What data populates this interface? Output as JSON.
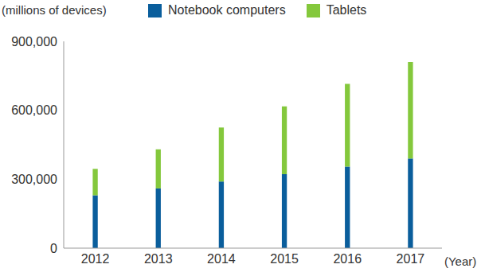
{
  "chart_data": {
    "type": "bar",
    "stacked": true,
    "y_label": "(millions of devices)",
    "x_label": "(Year)",
    "categories": [
      "2012",
      "2013",
      "2014",
      "2015",
      "2016",
      "2017"
    ],
    "series": [
      {
        "name": "Notebook computers",
        "color": "#0a5e9c",
        "values": [
          230000,
          260000,
          290000,
          322000,
          355000,
          390000
        ]
      },
      {
        "name": "Tablets",
        "color": "#84c83c",
        "values": [
          115000,
          170000,
          235000,
          295000,
          360000,
          420000
        ]
      }
    ],
    "ylim": [
      0,
      900000
    ],
    "yticks": [
      0,
      {
        "value": 300000,
        "label": "300,000"
      },
      {
        "value": 600000,
        "label": "600,000"
      },
      {
        "value": 900000,
        "label": "900,000"
      }
    ],
    "grid": false,
    "legend": "top"
  }
}
